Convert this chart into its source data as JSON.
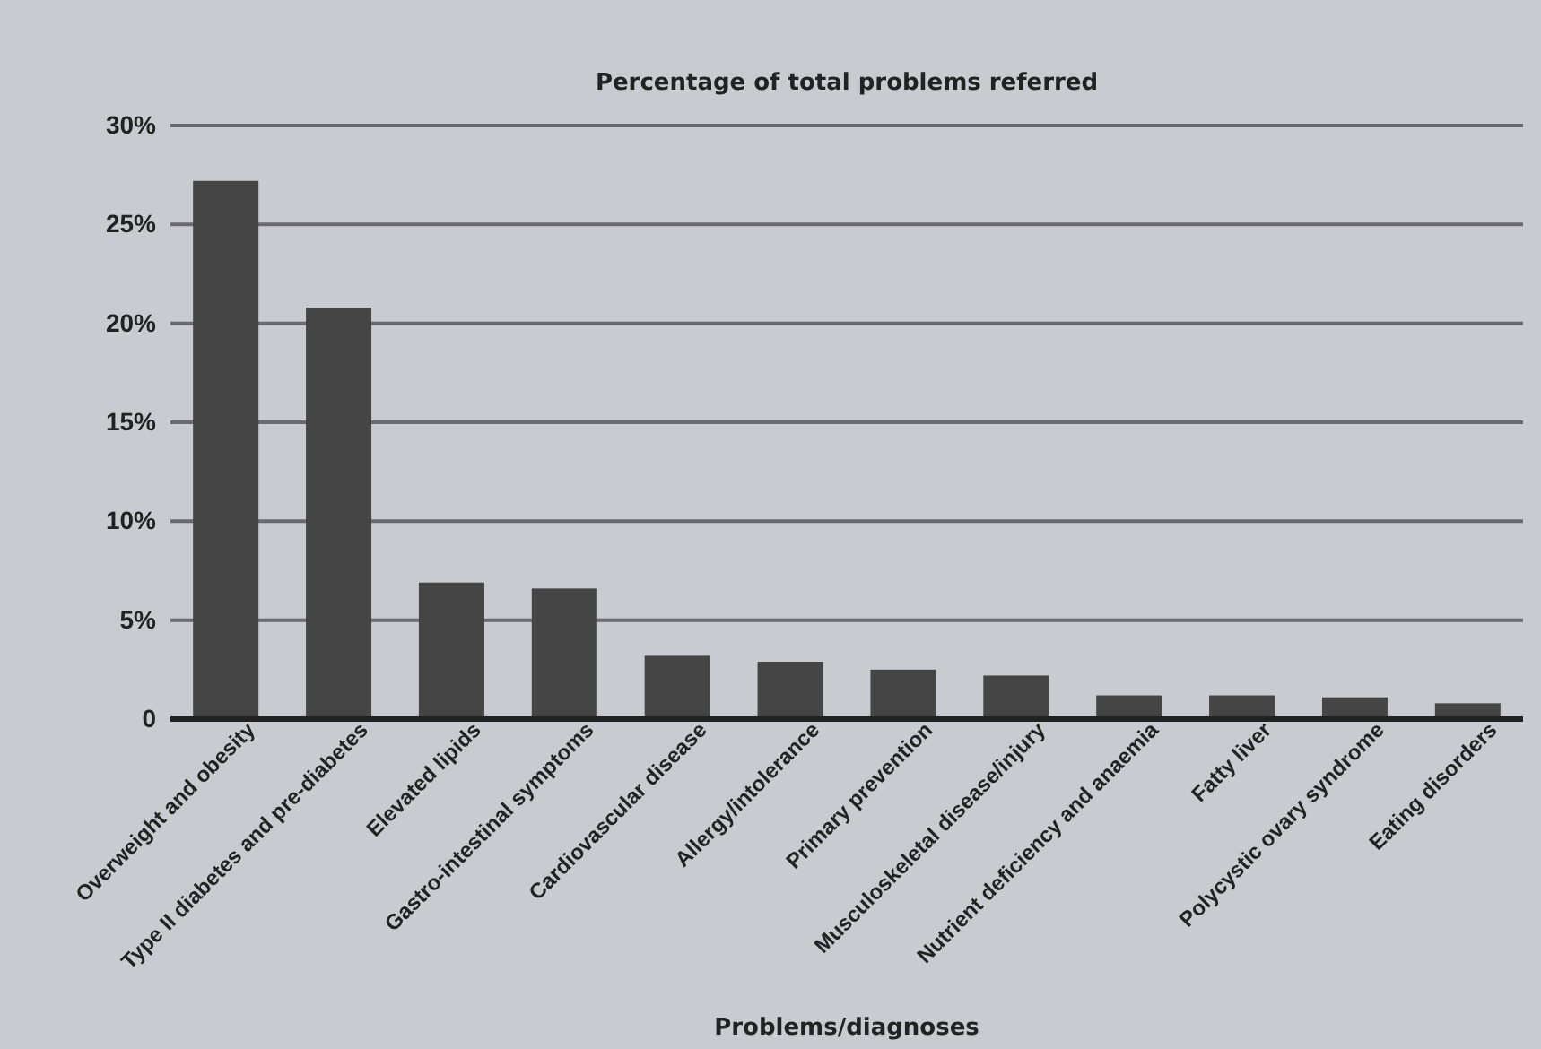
{
  "chart_data": {
    "type": "bar",
    "title": "Percentage of total problems referred",
    "xlabel": "Problems/diagnoses",
    "categories": [
      "Overweight and obesity",
      "Type II diabetes and pre-diabetes",
      "Elevated lipids",
      "Gastro-intestinal symptoms",
      "Cardiovascular disease",
      "Allergy/intolerance",
      "Primary prevention",
      "Musculoskeletal disease/injury",
      "Nutrient deficiency and anaemia",
      "Fatty liver",
      "Polycystic ovary syndrome",
      "Eating disorders"
    ],
    "values": [
      27.2,
      20.8,
      6.9,
      6.6,
      3.2,
      2.9,
      2.5,
      2.2,
      1.2,
      1.2,
      1.1,
      0.8
    ],
    "color": "#454545",
    "ylim": [
      0,
      30
    ],
    "yticks": [
      {
        "value": 0,
        "label": "0"
      },
      {
        "value": 5,
        "label": "5%"
      },
      {
        "value": 10,
        "label": "10%"
      },
      {
        "value": 15,
        "label": "15%"
      },
      {
        "value": 20,
        "label": "20%"
      },
      {
        "value": 25,
        "label": "25%"
      },
      {
        "value": 30,
        "label": "30%"
      }
    ],
    "grid": "y"
  }
}
